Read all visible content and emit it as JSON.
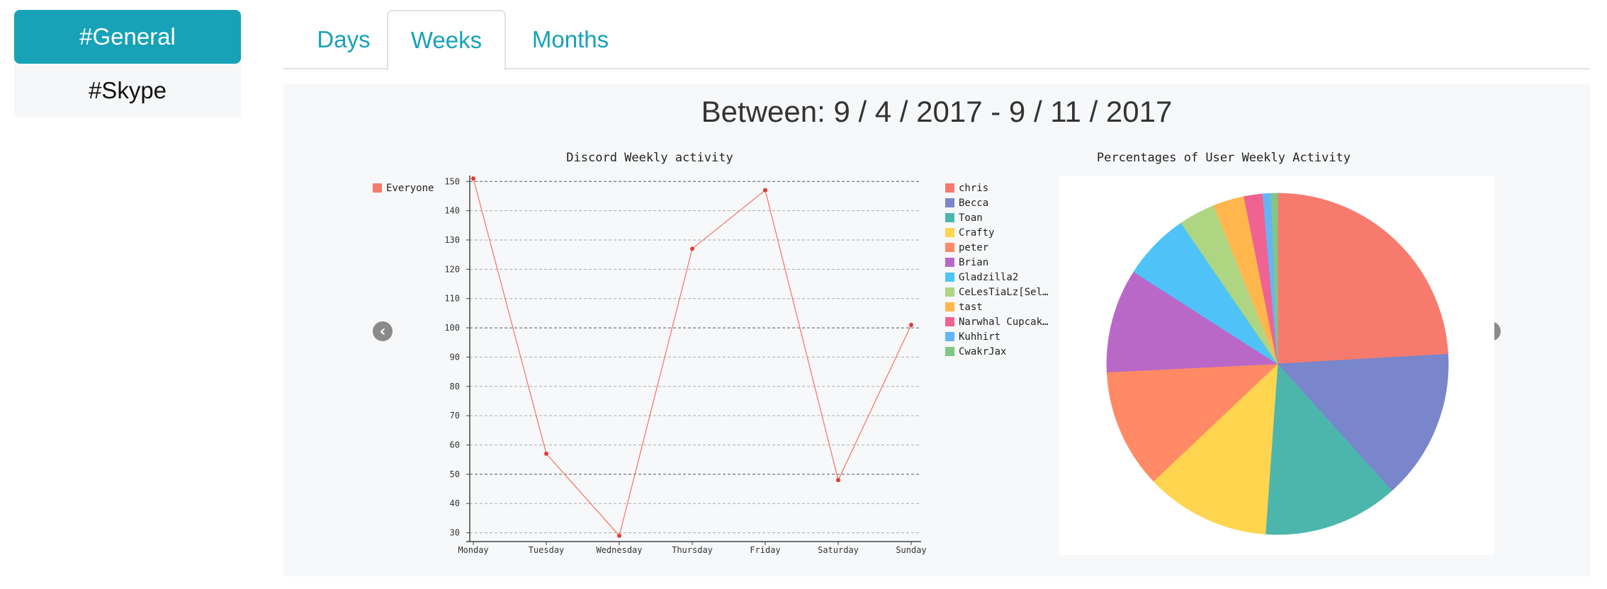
{
  "sidebar": {
    "items": [
      {
        "label": "#General",
        "active": true
      },
      {
        "label": "#Skype",
        "active": false
      }
    ]
  },
  "tabs": [
    {
      "label": "Days",
      "active": false
    },
    {
      "label": "Weeks",
      "active": true
    },
    {
      "label": "Months",
      "active": false
    }
  ],
  "range_title": "Between: 9 / 4 / 2017 - 9 / 11 / 2017",
  "colors": {
    "accent": "#17a2b8"
  },
  "icons": {
    "prev": "chevron-left-icon",
    "next": "chevron-right-icon"
  },
  "chart_data": [
    {
      "type": "line",
      "title": "Discord Weekly activity",
      "categories": [
        "Monday",
        "Tuesday",
        "Wednesday",
        "Thursday",
        "Friday",
        "Saturday",
        "Sunday"
      ],
      "series": [
        {
          "name": "Everyone",
          "color": "#f67b6e",
          "values": [
            151,
            57,
            29,
            127,
            147,
            48,
            101
          ]
        }
      ],
      "ylim": [
        27,
        152
      ],
      "yticks": [
        30,
        40,
        50,
        60,
        70,
        80,
        90,
        100,
        110,
        120,
        130,
        140,
        150
      ],
      "grid": true,
      "legend": "left"
    },
    {
      "type": "pie",
      "title": "Percentages of User Weekly Activity",
      "legend": "left",
      "slices": [
        {
          "label": "chris",
          "value": 24.5,
          "color": "#f67b6e"
        },
        {
          "label": "Becca",
          "value": 14.5,
          "color": "#7986cb"
        },
        {
          "label": "Toan",
          "value": 13.0,
          "color": "#4db6ac"
        },
        {
          "label": "Crafty",
          "value": 12.0,
          "color": "#ffd54f"
        },
        {
          "label": "peter",
          "value": 11.5,
          "color": "#ff8a65"
        },
        {
          "label": "Brian",
          "value": 10.0,
          "color": "#ba68c8"
        },
        {
          "label": "Gladzilla2",
          "value": 6.5,
          "color": "#4fc3f7"
        },
        {
          "label": "CeLesTiaLz[Sel…",
          "value": 3.5,
          "color": "#aed581"
        },
        {
          "label": "tast",
          "value": 3.0,
          "color": "#ffb74d"
        },
        {
          "label": "Narwhal Cupcak…",
          "value": 1.8,
          "color": "#f06292"
        },
        {
          "label": "Kuhhirt",
          "value": 0.8,
          "color": "#64b5f6"
        },
        {
          "label": "CwakrJax",
          "value": 0.6,
          "color": "#81c784"
        }
      ]
    }
  ]
}
